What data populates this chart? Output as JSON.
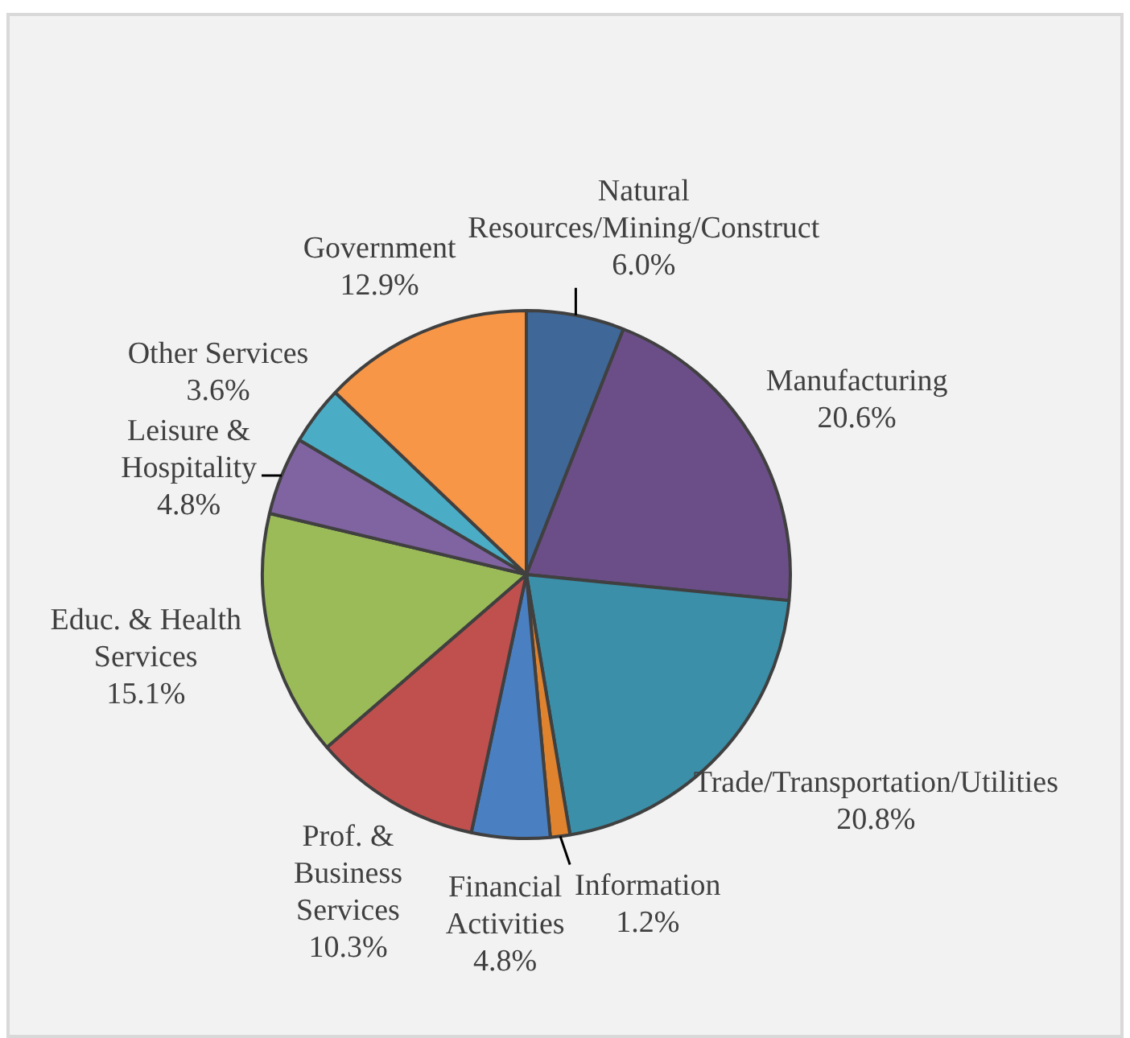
{
  "chart_data": {
    "type": "pie",
    "categories": [
      "Natural Resources/Mining/Construct",
      "Manufacturing",
      "Trade/Transportation/Utilities",
      "Information",
      "Financial Activities",
      "Prof. & Business Services",
      "Educ. & Health Services",
      "Leisure & Hospitality",
      "Other Services",
      "Government"
    ],
    "values": [
      6.0,
      20.6,
      20.8,
      1.2,
      4.8,
      10.3,
      15.1,
      4.8,
      3.6,
      12.9
    ],
    "value_labels": [
      "6.0%",
      "20.6%",
      "20.8%",
      "1.2%",
      "4.8%",
      "10.3%",
      "15.1%",
      "4.8%",
      "3.6%",
      "12.9%"
    ],
    "colors": [
      "#3f6797",
      "#6b4e87",
      "#3b8fa8",
      "#e0832f",
      "#4a7fc1",
      "#c0504d",
      "#9bbb59",
      "#8064a2",
      "#4bacc6",
      "#f79646"
    ],
    "legend": false
  }
}
